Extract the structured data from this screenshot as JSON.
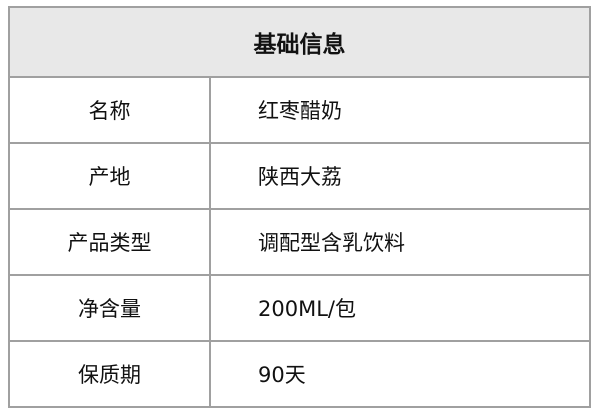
{
  "table": {
    "title": "基础信息",
    "header_bg": "#e8e8e8",
    "rows": [
      {
        "label": "名称",
        "value": "红枣醋奶"
      },
      {
        "label": "产地",
        "value": "陕西大荔"
      },
      {
        "label": "产品类型",
        "value": "调配型含乳饮料"
      },
      {
        "label": "净含量",
        "value": "200ML/包"
      },
      {
        "label": "保质期",
        "value": "90天"
      }
    ]
  }
}
